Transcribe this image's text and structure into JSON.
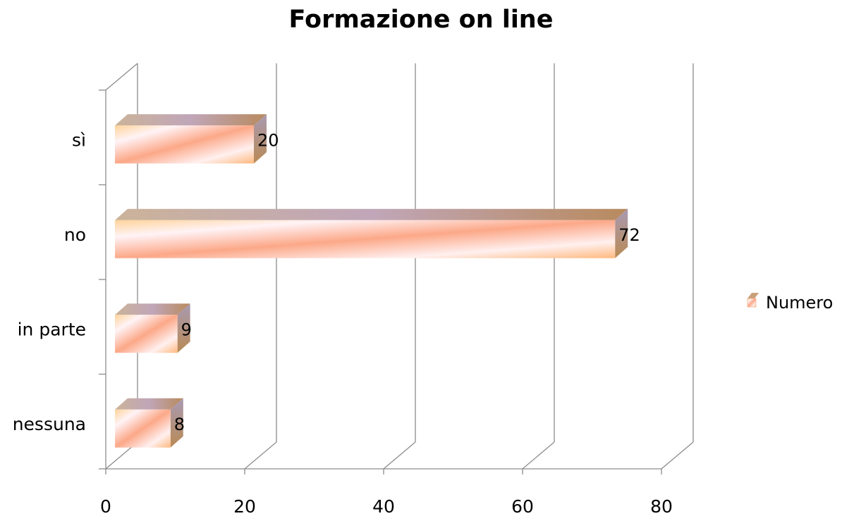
{
  "chart_data": {
    "type": "bar",
    "orientation": "horizontal",
    "three_d": true,
    "title": "Formazione on line",
    "categories": [
      "sì",
      "no",
      "in parte",
      "nessuna"
    ],
    "series": [
      {
        "name": "Numero",
        "values": [
          20,
          72,
          9,
          8
        ],
        "color": "#f7b385"
      }
    ],
    "xlim": [
      0,
      80
    ],
    "x_ticks": [
      0,
      20,
      40,
      60,
      80
    ],
    "grid": true,
    "legend_position": "right",
    "data_labels": true
  }
}
